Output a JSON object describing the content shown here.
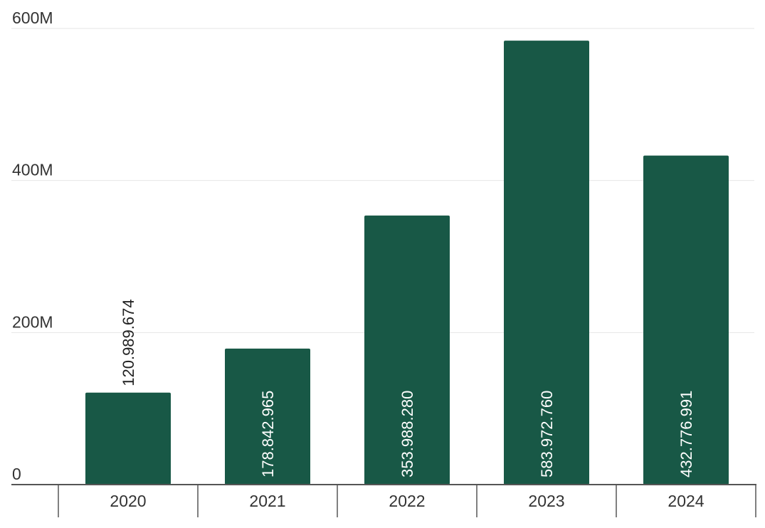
{
  "chart_data": {
    "type": "bar",
    "categories": [
      "2020",
      "2021",
      "2022",
      "2023",
      "2024"
    ],
    "values": [
      120989674,
      178842965,
      353988280,
      583972760,
      432776991
    ],
    "data_labels": [
      "120.989.674",
      "178.842.965",
      "353.988.280",
      "583.972.760",
      "432.776.991"
    ],
    "y_ticks": [
      {
        "value": 0,
        "label": "0"
      },
      {
        "value": 200000000,
        "label": "200M"
      },
      {
        "value": 400000000,
        "label": "400M"
      },
      {
        "value": 600000000,
        "label": "600M"
      }
    ],
    "ylim": [
      0,
      600000000
    ],
    "title": "",
    "xlabel": "",
    "ylabel": "",
    "grid": true,
    "legend": "none",
    "colors": {
      "bar": "#185846",
      "label_inside": "#ffffff",
      "label_outside": "#222222"
    }
  }
}
